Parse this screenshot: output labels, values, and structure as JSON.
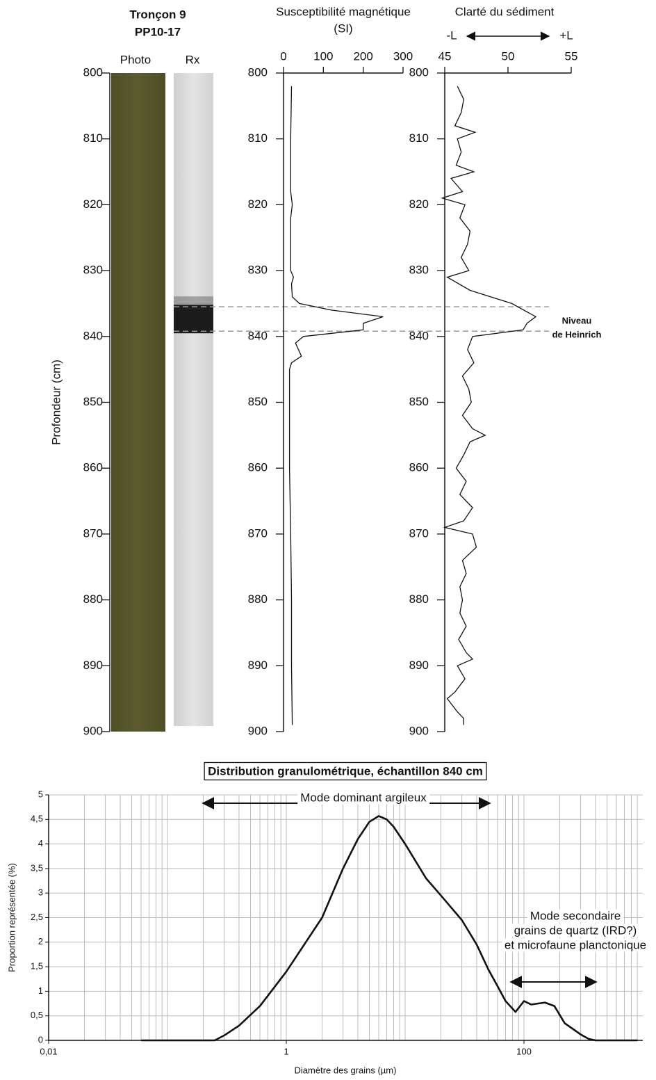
{
  "chart_data": [
    {
      "type": "core",
      "title": [
        "Tronçon 9",
        "PP10-17"
      ],
      "columns": [
        "Photo",
        "Rx"
      ],
      "ylabel": "Profondeur (cm)",
      "ylim": [
        800,
        900
      ],
      "yticks": [
        800,
        810,
        820,
        830,
        840,
        850,
        860,
        870,
        880,
        890,
        900
      ],
      "highlight_band": [
        835.5,
        839.2
      ],
      "color": "#55552c"
    },
    {
      "type": "line",
      "title": [
        "Susceptibilité magnétique",
        "(SI)"
      ],
      "xlim": [
        0,
        300
      ],
      "xticks": [
        0,
        100,
        200,
        300
      ],
      "ylim": [
        800,
        900
      ],
      "yticks": [
        800,
        810,
        820,
        830,
        840,
        850,
        860,
        870,
        880,
        890,
        900
      ],
      "color": "#111111",
      "depth": [
        802,
        810,
        818,
        820,
        822,
        830,
        831,
        832,
        834,
        835,
        836,
        837,
        838,
        839,
        840,
        841,
        843,
        844,
        845,
        850,
        860,
        870,
        880,
        890,
        899
      ],
      "values": [
        20,
        18,
        18,
        22,
        18,
        18,
        25,
        20,
        22,
        40,
        120,
        250,
        200,
        200,
        50,
        30,
        45,
        20,
        15,
        15,
        15,
        18,
        20,
        20,
        22
      ]
    },
    {
      "type": "line",
      "title": [
        "Clarté du sédiment"
      ],
      "axis_ends": [
        "-L",
        "+L"
      ],
      "xlim": [
        45,
        55
      ],
      "xticks": [
        45,
        50,
        55
      ],
      "ylim": [
        800,
        900
      ],
      "yticks": [
        800,
        810,
        820,
        830,
        840,
        850,
        860,
        870,
        880,
        890,
        900
      ],
      "color": "#111111",
      "annotation": [
        "Niveau",
        "de Heinrich"
      ],
      "depth": [
        802,
        804,
        806,
        808,
        809,
        810,
        812,
        814,
        815,
        816,
        818,
        819,
        820,
        822,
        824,
        826,
        828,
        830,
        831,
        833,
        835,
        837,
        838,
        839,
        840,
        842,
        844,
        846,
        848,
        850,
        852,
        854,
        855,
        856,
        858,
        860,
        862,
        864,
        866,
        868,
        869,
        870,
        872,
        874,
        876,
        878,
        880,
        882,
        884,
        886,
        888,
        889,
        890,
        892,
        894,
        895,
        897,
        898,
        899
      ],
      "values": [
        46,
        46.5,
        46.3,
        45.8,
        47.4,
        46,
        46.3,
        45.9,
        47.3,
        45.5,
        46.4,
        44.8,
        46.6,
        46.2,
        47,
        46.8,
        46.3,
        46.9,
        45.2,
        47,
        50.3,
        52.2,
        51.5,
        51.2,
        47.2,
        46.8,
        47.3,
        46.4,
        46.9,
        47.1,
        46.4,
        47.2,
        48.2,
        47,
        46.5,
        45.9,
        46.7,
        46.2,
        47.2,
        46.5,
        45,
        47.2,
        47.5,
        46.4,
        46.7,
        46.2,
        46.4,
        46.2,
        46.7,
        46.1,
        46.7,
        47.2,
        46,
        46.6,
        45.8,
        45.2,
        46,
        46.5,
        46.5
      ]
    },
    {
      "type": "curve",
      "title": "Distribution granulométrique, échantillon 840 cm",
      "xlabel": "Diamètre des grains (µm)",
      "ylabel": "Proportion représentée (%)",
      "log_x": true,
      "grid": true,
      "color": "#111111",
      "xlim": [
        0.01,
        1000
      ],
      "xticks": [
        {
          "value": 0.01,
          "label": "0,01"
        },
        1,
        100
      ],
      "ylim": [
        0,
        5
      ],
      "yticks": [
        0,
        {
          "value": 0.5,
          "label": "0,5"
        },
        1,
        {
          "value": 1.5,
          "label": "1,5"
        },
        2,
        {
          "value": 2.5,
          "label": "2,5"
        },
        3,
        {
          "value": 3.5,
          "label": "3,5"
        },
        4,
        {
          "value": 4.5,
          "label": "4,5"
        },
        5
      ],
      "annotations": [
        [
          "Mode dominant argileux"
        ],
        [
          "Mode secondaire",
          "grains de quartz (IRD?)",
          "et microfaune planctonique"
        ]
      ],
      "x": [
        0.06,
        0.25,
        0.3,
        0.4,
        0.6,
        1,
        2,
        3,
        4,
        5,
        6,
        7,
        8,
        10,
        15,
        20,
        30,
        40,
        50,
        60,
        70,
        85,
        100,
        115,
        150,
        180,
        220,
        300,
        350,
        400,
        900
      ],
      "values": [
        0,
        0,
        0.1,
        0.3,
        0.7,
        1.4,
        2.5,
        3.5,
        4.1,
        4.45,
        4.57,
        4.5,
        4.35,
        4,
        3.3,
        2.95,
        2.45,
        1.95,
        1.45,
        1.1,
        0.8,
        0.58,
        0.8,
        0.73,
        0.77,
        0.7,
        0.35,
        0.12,
        0.03,
        0,
        0
      ]
    }
  ]
}
